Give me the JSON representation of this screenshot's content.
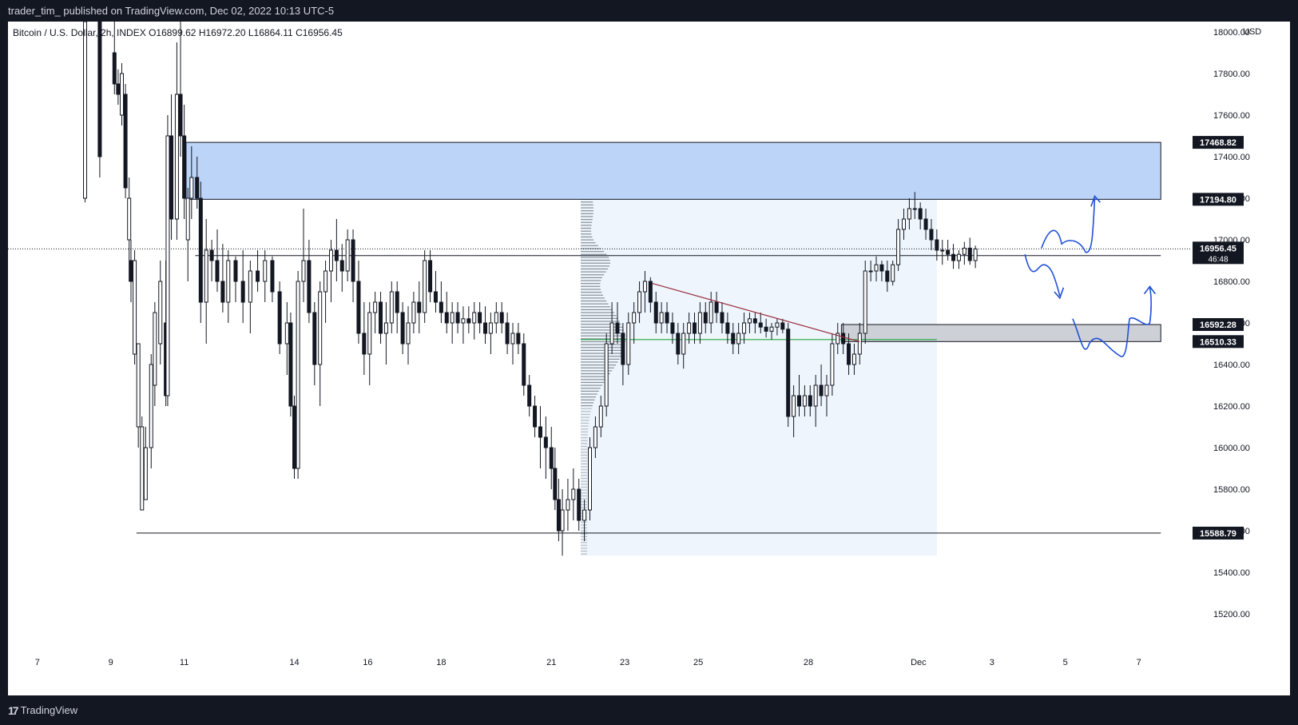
{
  "header": {
    "publisher_line": "trader_tim_ published on TradingView.com, Dec 02, 2022 10:13 UTC-5"
  },
  "legend": {
    "symbol": "Bitcoin / U.S. Dollar, 2h, INDEX",
    "open": "O16899.62",
    "high": "H16972.20",
    "low": "L16864.11",
    "close": "C16956.45"
  },
  "currency": "USD",
  "footer": {
    "brand": "TradingView"
  },
  "colors": {
    "bg": "#ffffff",
    "candle": "#131722",
    "supply_zone": "#bbd4f7",
    "demand_zone": "#cdd0d6",
    "volume_profile_box": "#eef5fc",
    "trendline": "#9b2c3c",
    "poc_line": "#22a63f",
    "drawing": "#2050d8"
  },
  "chart_data": {
    "type": "candlestick",
    "timeframe": "2h",
    "ylim": [
      15050,
      18050
    ],
    "y_ticks": [
      15200,
      15400,
      15600,
      15800,
      16000,
      16200,
      16400,
      16600,
      16800,
      17000,
      17200,
      17400,
      17600,
      17800,
      18000
    ],
    "y_tick_labels": [
      "15200.00",
      "15400.00",
      "15600.00",
      "15800.00",
      "16000.00",
      "16200.00",
      "16400.00",
      "16600.00",
      "16800.00",
      "17000.00",
      "17200.00",
      "17400.00",
      "17600.00",
      "17800.00",
      "18000.00"
    ],
    "x_tick_labels": [
      "7",
      "9",
      "11",
      "14",
      "16",
      "18",
      "21",
      "23",
      "25",
      "28",
      "Dec",
      "3",
      "5",
      "7"
    ],
    "x_tick_days": [
      7,
      9,
      11,
      14,
      16,
      18,
      21,
      23,
      25,
      28,
      31,
      33,
      35,
      37
    ],
    "x_range_days": [
      6.2,
      38.4
    ],
    "last_price": "16956.45",
    "countdown": "46:48",
    "levels": [
      {
        "price": 17468.82,
        "label": "17468.82"
      },
      {
        "price": 17194.8,
        "label": "17194.80"
      },
      {
        "price": 16923.81,
        "label": "16923.81"
      },
      {
        "price": 16592.28,
        "label": "16592.28"
      },
      {
        "price": 16510.33,
        "label": "16510.33"
      },
      {
        "price": 15588.79,
        "label": "15588.79"
      }
    ],
    "supply_zone": {
      "from_day": 11.05,
      "to_day": 37.6,
      "low": 17194.8,
      "high": 17468.82
    },
    "demand_zone": {
      "from_day": 28.9,
      "to_day": 37.6,
      "low": 16510.33,
      "high": 16592.28
    },
    "horizontal_lines": [
      {
        "price": 16923.81,
        "from_day": 11.3,
        "to_day": 37.6
      },
      {
        "price": 15588.79,
        "from_day": 9.7,
        "to_day": 37.6
      }
    ],
    "volume_profile": {
      "from_day": 21.8,
      "to_day": 31.5,
      "low": 15480,
      "high": 17250,
      "poc": 16520
    },
    "trendline": {
      "x1": 23.75,
      "y1": 16790,
      "x2": 29.4,
      "y2": 16510
    },
    "candles": [
      [
        8.3,
        17200,
        18050,
        17180,
        18050
      ],
      [
        8.7,
        18050,
        18050,
        17300,
        17400
      ],
      [
        9.1,
        17900,
        18050,
        17700,
        17750
      ],
      [
        9.2,
        17750,
        17820,
        17650,
        17700
      ],
      [
        9.3,
        17600,
        17850,
        17550,
        17800
      ],
      [
        9.4,
        17700,
        17750,
        17200,
        17250
      ],
      [
        9.5,
        17000,
        17300,
        16800,
        17200
      ],
      [
        9.55,
        16900,
        17000,
        16700,
        16800
      ],
      [
        9.65,
        16450,
        16950,
        16400,
        16900
      ],
      [
        9.75,
        16100,
        16500,
        16000,
        16500
      ],
      [
        9.85,
        15700,
        16150,
        15700,
        16100
      ],
      [
        9.95,
        15750,
        16100,
        15750,
        16000
      ],
      [
        10.1,
        16000,
        16450,
        15900,
        16400
      ],
      [
        10.2,
        16300,
        16700,
        16200,
        16650
      ],
      [
        10.35,
        16500,
        16900,
        16400,
        16800
      ],
      [
        10.5,
        16600,
        16900,
        16200,
        16250
      ],
      [
        10.55,
        16250,
        17600,
        16200,
        17500
      ],
      [
        10.65,
        17500,
        17700,
        17000,
        17100
      ],
      [
        10.8,
        17100,
        17950,
        17000,
        17700
      ],
      [
        10.9,
        17700,
        18050,
        17400,
        17500
      ],
      [
        11.0,
        17500,
        17650,
        17100,
        17200
      ],
      [
        11.1,
        17000,
        17250,
        16800,
        17200
      ],
      [
        11.2,
        17200,
        17450,
        17100,
        17300
      ],
      [
        11.35,
        17300,
        17400,
        17150,
        17200
      ],
      [
        11.45,
        17200,
        17280,
        16600,
        16700
      ],
      [
        11.6,
        16700,
        17100,
        16500,
        16950
      ],
      [
        11.75,
        16950,
        17000,
        16800,
        16900
      ],
      [
        11.9,
        16900,
        17050,
        16750,
        16800
      ],
      [
        12.05,
        16800,
        16980,
        16650,
        16700
      ],
      [
        12.2,
        16700,
        16950,
        16600,
        16900
      ],
      [
        12.4,
        16900,
        16920,
        16700,
        16800
      ],
      [
        12.6,
        16800,
        16950,
        16600,
        16700
      ],
      [
        12.8,
        16700,
        16900,
        16550,
        16850
      ],
      [
        13.0,
        16850,
        16950,
        16750,
        16800
      ],
      [
        13.2,
        16800,
        16950,
        16700,
        16900
      ],
      [
        13.4,
        16900,
        16920,
        16700,
        16750
      ],
      [
        13.6,
        16750,
        16800,
        16450,
        16500
      ],
      [
        13.8,
        16500,
        16700,
        16350,
        16600
      ],
      [
        13.9,
        16600,
        16650,
        16150,
        16200
      ],
      [
        14.0,
        16200,
        16250,
        15850,
        15900
      ],
      [
        14.1,
        15900,
        16850,
        15850,
        16800
      ],
      [
        14.25,
        16800,
        17150,
        16700,
        16900
      ],
      [
        14.4,
        16900,
        17000,
        16600,
        16650
      ],
      [
        14.55,
        16650,
        16700,
        16300,
        16400
      ],
      [
        14.7,
        16400,
        16800,
        16200,
        16750
      ],
      [
        14.85,
        16750,
        16900,
        16600,
        16850
      ],
      [
        15.0,
        16850,
        17000,
        16700,
        16950
      ],
      [
        15.15,
        16950,
        17100,
        16800,
        16900
      ],
      [
        15.3,
        16900,
        16980,
        16750,
        16850
      ],
      [
        15.45,
        16850,
        17050,
        16800,
        17000
      ],
      [
        15.6,
        17000,
        17050,
        16700,
        16800
      ],
      [
        15.75,
        16800,
        16900,
        16500,
        16550
      ],
      [
        15.9,
        16550,
        16700,
        16350,
        16450
      ],
      [
        16.05,
        16450,
        16700,
        16300,
        16650
      ],
      [
        16.2,
        16650,
        16750,
        16550,
        16700
      ],
      [
        16.35,
        16700,
        16750,
        16500,
        16550
      ],
      [
        16.5,
        16550,
        16700,
        16400,
        16600
      ],
      [
        16.65,
        16600,
        16800,
        16550,
        16750
      ],
      [
        16.8,
        16750,
        16800,
        16550,
        16650
      ],
      [
        16.95,
        16650,
        16700,
        16450,
        16500
      ],
      [
        17.1,
        16500,
        16680,
        16400,
        16600
      ],
      [
        17.25,
        16600,
        16750,
        16550,
        16700
      ],
      [
        17.4,
        16700,
        16800,
        16550,
        16650
      ],
      [
        17.55,
        16650,
        16950,
        16600,
        16900
      ],
      [
        17.7,
        16900,
        16950,
        16700,
        16750
      ],
      [
        17.85,
        16750,
        16850,
        16650,
        16700
      ],
      [
        18.0,
        16700,
        16800,
        16600,
        16650
      ],
      [
        18.15,
        16650,
        16750,
        16550,
        16600
      ],
      [
        18.3,
        16600,
        16700,
        16500,
        16650
      ],
      [
        18.45,
        16650,
        16700,
        16550,
        16600
      ],
      [
        18.6,
        16600,
        16680,
        16500,
        16620
      ],
      [
        18.75,
        16620,
        16680,
        16550,
        16600
      ],
      [
        18.9,
        16600,
        16700,
        16520,
        16650
      ],
      [
        19.05,
        16650,
        16700,
        16550,
        16600
      ],
      [
        19.2,
        16600,
        16680,
        16500,
        16550
      ],
      [
        19.35,
        16550,
        16650,
        16450,
        16600
      ],
      [
        19.5,
        16600,
        16700,
        16550,
        16650
      ],
      [
        19.65,
        16650,
        16700,
        16550,
        16600
      ],
      [
        19.8,
        16600,
        16650,
        16450,
        16500
      ],
      [
        19.95,
        16500,
        16600,
        16400,
        16550
      ],
      [
        20.1,
        16550,
        16600,
        16450,
        16500
      ],
      [
        20.25,
        16500,
        16550,
        16250,
        16300
      ],
      [
        20.4,
        16300,
        16350,
        16150,
        16200
      ],
      [
        20.55,
        16200,
        16250,
        16050,
        16100
      ],
      [
        20.7,
        16100,
        16200,
        15900,
        16050
      ],
      [
        20.85,
        16050,
        16150,
        15850,
        16000
      ],
      [
        21.0,
        16000,
        16100,
        15800,
        15900
      ],
      [
        21.1,
        15900,
        16000,
        15700,
        15750
      ],
      [
        21.2,
        15750,
        15850,
        15550,
        15600
      ],
      [
        21.3,
        15600,
        15800,
        15480,
        15700
      ],
      [
        21.45,
        15700,
        15850,
        15600,
        15750
      ],
      [
        21.6,
        15750,
        15900,
        15650,
        15800
      ],
      [
        21.75,
        15800,
        15850,
        15600,
        15650
      ],
      [
        21.9,
        15650,
        15750,
        15550,
        15700
      ],
      [
        22.05,
        15700,
        16050,
        15650,
        16000
      ],
      [
        22.2,
        16000,
        16150,
        15950,
        16100
      ],
      [
        22.35,
        16100,
        16250,
        16050,
        16200
      ],
      [
        22.5,
        16200,
        16550,
        16150,
        16500
      ],
      [
        22.65,
        16500,
        16700,
        16450,
        16600
      ],
      [
        22.8,
        16600,
        16700,
        16500,
        16550
      ],
      [
        22.95,
        16550,
        16600,
        16300,
        16400
      ],
      [
        23.1,
        16400,
        16650,
        16350,
        16600
      ],
      [
        23.25,
        16600,
        16700,
        16500,
        16650
      ],
      [
        23.4,
        16650,
        16800,
        16600,
        16750
      ],
      [
        23.55,
        16750,
        16850,
        16650,
        16800
      ],
      [
        23.7,
        16800,
        16820,
        16650,
        16700
      ],
      [
        23.85,
        16700,
        16750,
        16550,
        16600
      ],
      [
        24.0,
        16600,
        16700,
        16550,
        16650
      ],
      [
        24.15,
        16650,
        16700,
        16550,
        16600
      ],
      [
        24.3,
        16600,
        16650,
        16500,
        16550
      ],
      [
        24.45,
        16550,
        16600,
        16400,
        16450
      ],
      [
        24.6,
        16450,
        16600,
        16380,
        16550
      ],
      [
        24.75,
        16550,
        16650,
        16500,
        16600
      ],
      [
        24.9,
        16600,
        16650,
        16500,
        16550
      ],
      [
        25.05,
        16550,
        16700,
        16500,
        16650
      ],
      [
        25.2,
        16650,
        16700,
        16550,
        16600
      ],
      [
        25.35,
        16600,
        16750,
        16550,
        16700
      ],
      [
        25.5,
        16700,
        16750,
        16600,
        16650
      ],
      [
        25.65,
        16650,
        16700,
        16550,
        16600
      ],
      [
        25.8,
        16600,
        16650,
        16500,
        16550
      ],
      [
        25.95,
        16550,
        16600,
        16450,
        16500
      ],
      [
        26.1,
        16500,
        16600,
        16450,
        16550
      ],
      [
        26.25,
        16550,
        16650,
        16500,
        16600
      ],
      [
        26.4,
        16600,
        16650,
        16550,
        16620
      ],
      [
        26.55,
        16620,
        16650,
        16550,
        16600
      ],
      [
        26.7,
        16600,
        16650,
        16550,
        16580
      ],
      [
        26.85,
        16580,
        16620,
        16530,
        16560
      ],
      [
        27.0,
        16560,
        16600,
        16520,
        16580
      ],
      [
        27.15,
        16580,
        16620,
        16540,
        16600
      ],
      [
        27.3,
        16600,
        16620,
        16550,
        16570
      ],
      [
        27.45,
        16570,
        16600,
        16100,
        16150
      ],
      [
        27.6,
        16150,
        16300,
        16050,
        16250
      ],
      [
        27.75,
        16250,
        16350,
        16150,
        16200
      ],
      [
        27.9,
        16200,
        16300,
        16150,
        16250
      ],
      [
        28.05,
        16250,
        16300,
        16150,
        16200
      ],
      [
        28.2,
        16200,
        16350,
        16100,
        16300
      ],
      [
        28.35,
        16300,
        16400,
        16200,
        16250
      ],
      [
        28.5,
        16250,
        16350,
        16150,
        16300
      ],
      [
        28.65,
        16300,
        16550,
        16250,
        16500
      ],
      [
        28.8,
        16500,
        16600,
        16450,
        16550
      ],
      [
        28.95,
        16550,
        16600,
        16450,
        16500
      ],
      [
        29.1,
        16500,
        16550,
        16350,
        16400
      ],
      [
        29.25,
        16400,
        16500,
        16350,
        16450
      ],
      [
        29.4,
        16450,
        16600,
        16400,
        16550
      ],
      [
        29.55,
        16550,
        16900,
        16500,
        16850
      ],
      [
        29.7,
        16850,
        16900,
        16800,
        16850
      ],
      [
        29.85,
        16850,
        16920,
        16800,
        16880
      ],
      [
        30.0,
        16880,
        16900,
        16800,
        16850
      ],
      [
        30.15,
        16850,
        16900,
        16750,
        16800
      ],
      [
        30.3,
        16800,
        16900,
        16780,
        16880
      ],
      [
        30.45,
        16880,
        17100,
        16850,
        17050
      ],
      [
        30.6,
        17050,
        17150,
        17000,
        17100
      ],
      [
        30.75,
        17100,
        17200,
        17050,
        17150
      ],
      [
        30.9,
        17150,
        17230,
        17100,
        17150
      ],
      [
        31.05,
        17150,
        17180,
        17050,
        17100
      ],
      [
        31.2,
        17100,
        17150,
        17000,
        17050
      ],
      [
        31.35,
        17050,
        17100,
        16950,
        17000
      ],
      [
        31.5,
        17000,
        17050,
        16900,
        16950
      ],
      [
        31.65,
        16950,
        17000,
        16880,
        16950
      ],
      [
        31.8,
        16950,
        17000,
        16900,
        16930
      ],
      [
        31.95,
        16930,
        16980,
        16860,
        16900
      ],
      [
        32.1,
        16900,
        16950,
        16860,
        16930
      ],
      [
        32.25,
        16930,
        16990,
        16880,
        16960
      ],
      [
        32.4,
        16960,
        17010,
        16880,
        16900
      ],
      [
        32.55,
        16900,
        16972,
        16864,
        16956
      ]
    ],
    "annotations": [
      {
        "type": "bullish-path",
        "from_day": 34.3,
        "to_day": 35.8
      },
      {
        "type": "bearish-path",
        "from_day": 33.9,
        "to_day": 34.9
      },
      {
        "type": "bullish-path",
        "from_day": 35.6,
        "to_day": 37.4
      }
    ]
  }
}
